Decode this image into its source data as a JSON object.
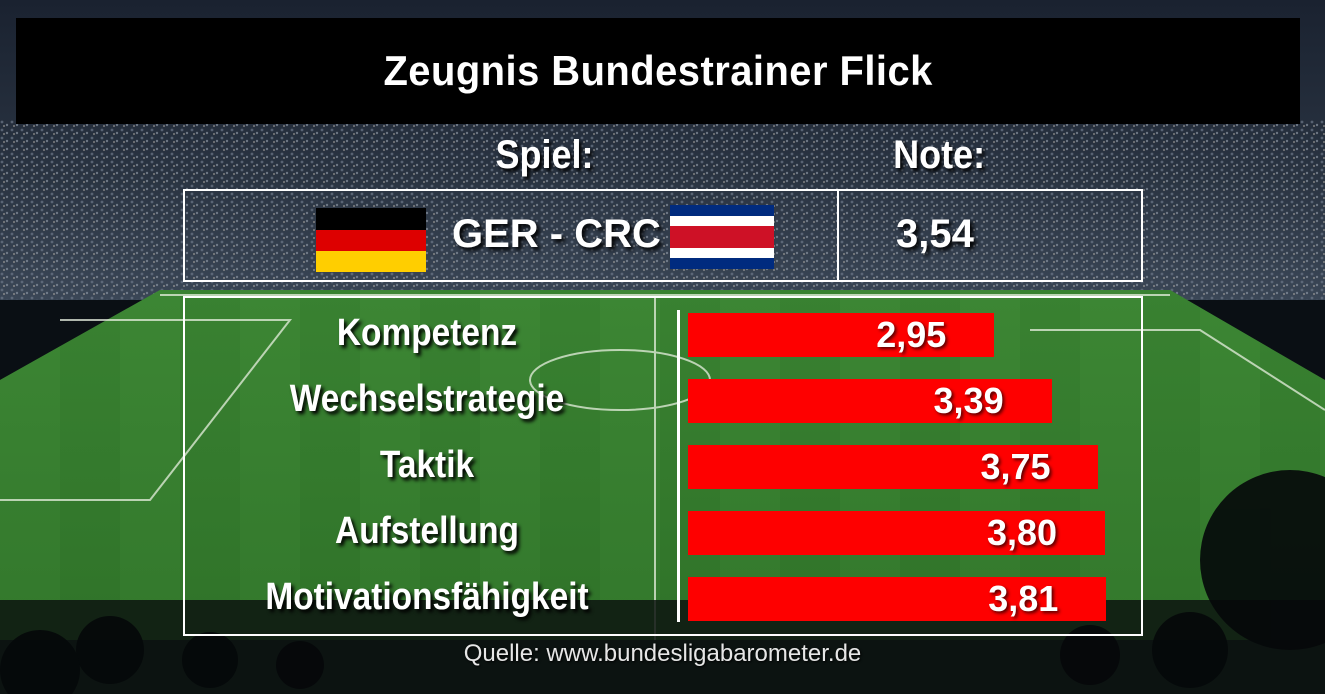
{
  "title": "Zeugnis Bundestrainer Flick",
  "header": {
    "game_label": "Spiel:",
    "grade_label": "Note:"
  },
  "match": {
    "text": "GER - CRC",
    "grade": "3,54",
    "home_flag_colors": [
      "#000000",
      "#dd0000",
      "#ffce00"
    ],
    "away_flag_colors": [
      "#002b7f",
      "#ffffff",
      "#ce1126",
      "#ffffff",
      "#002b7f"
    ]
  },
  "source": "Quelle: www.bundesligabarometer.de",
  "colors": {
    "bar": "#fe0000",
    "title_background": "#000000",
    "pitch": "#2f7a2a"
  },
  "chart_data": {
    "type": "bar",
    "orientation": "horizontal",
    "categories": [
      "Kompetenz",
      "Wechselstrategie",
      "Taktik",
      "Aufstellung",
      "Motivationsfähigkeit"
    ],
    "values": [
      2.95,
      3.39,
      3.75,
      3.8,
      3.81
    ],
    "value_labels": [
      "2,95",
      "3,39",
      "3,75",
      "3,80",
      "3,81"
    ],
    "xlim": [
      0.6,
      3.9
    ],
    "title": "",
    "xlabel": "",
    "ylabel": ""
  }
}
